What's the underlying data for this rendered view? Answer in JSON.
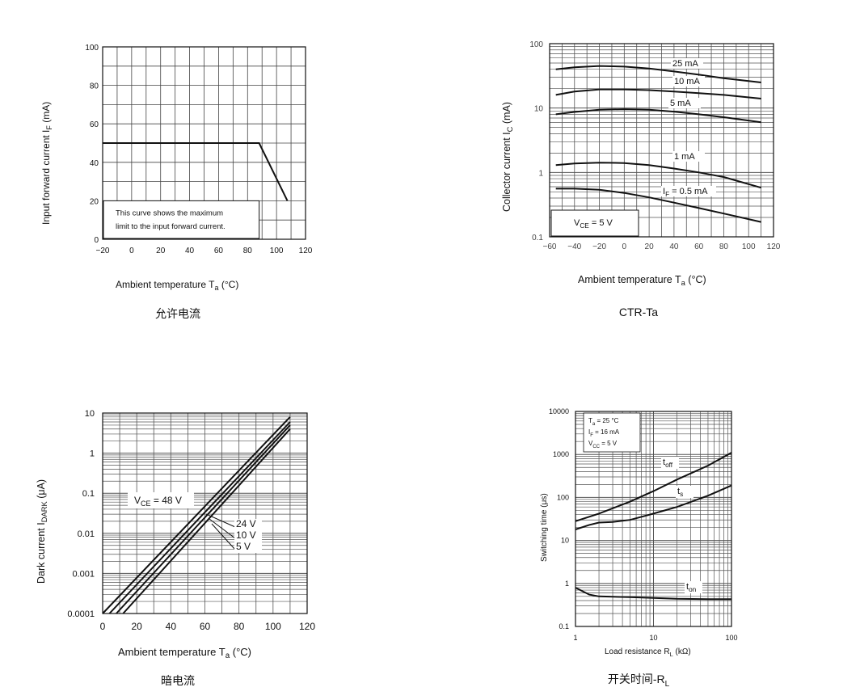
{
  "captions": {
    "c1": "允许电流",
    "c2": "CTR-Ta",
    "c3": "暗电流",
    "c4_main": "开关时间-R",
    "c4_sub": "L"
  },
  "chart_data": [
    {
      "id": "allowable-current",
      "type": "line",
      "xlabel": "Ambient temperature   T",
      "xlabel_sub": "a",
      "xlabel_unit": "   (°C)",
      "ylabel": "Input forward current   I",
      "ylabel_sub": "F",
      "ylabel_unit": "   (mA)",
      "xlim": [
        -20,
        120
      ],
      "ylim": [
        0,
        100
      ],
      "xticks": [
        -20,
        0,
        20,
        40,
        60,
        80,
        100,
        120
      ],
      "yticks": [
        0,
        20,
        40,
        60,
        80,
        100
      ],
      "series": [
        {
          "x": [
            -20,
            88,
            107.5
          ],
          "y": [
            50,
            50,
            20
          ]
        }
      ],
      "note_lines": [
        "This curve shows the maximum",
        "limit to the input forward current."
      ],
      "grid": true
    },
    {
      "id": "ctr-ta",
      "type": "line",
      "xlabel": "Ambient temperature   T",
      "xlabel_sub": "a",
      "xlabel_unit": "   (°C)",
      "ylabel": "Collector current   I",
      "ylabel_sub": "C",
      "ylabel_unit": "   (mA)",
      "xlim": [
        -60,
        120
      ],
      "ylim": [
        0.1,
        100
      ],
      "yscale": "log",
      "xticks": [
        "−60",
        "−40",
        "−20",
        "0",
        "20",
        "40",
        "60",
        "80",
        "100",
        "120"
      ],
      "yticks": [
        "0.1",
        "1",
        "10",
        "100"
      ],
      "series": [
        {
          "name": "25 mA",
          "x": [
            -55,
            -40,
            -20,
            0,
            20,
            40,
            60,
            80,
            110
          ],
          "y": [
            40,
            43,
            45,
            44,
            41,
            37,
            33,
            29,
            25
          ]
        },
        {
          "name": "10 mA",
          "x": [
            -55,
            -40,
            -20,
            0,
            20,
            40,
            60,
            80,
            110
          ],
          "y": [
            16,
            18,
            19.5,
            19.5,
            19,
            18,
            17,
            16,
            14
          ]
        },
        {
          "name": "5 mA",
          "x": [
            -55,
            -40,
            -20,
            0,
            20,
            40,
            60,
            80,
            110
          ],
          "y": [
            8,
            8.7,
            9.4,
            9.6,
            9.4,
            8.8,
            8,
            7.2,
            6
          ]
        },
        {
          "name": "1 mA",
          "x": [
            -55,
            -40,
            -20,
            0,
            20,
            40,
            60,
            80,
            110
          ],
          "y": [
            1.3,
            1.38,
            1.42,
            1.4,
            1.3,
            1.15,
            1.0,
            0.85,
            0.58
          ]
        },
        {
          "name": "I",
          "name_sub": "F",
          "name_suffix": " = 0.5 mA",
          "x": [
            -55,
            -40,
            -20,
            0,
            20,
            40,
            60,
            80,
            110
          ],
          "y": [
            0.56,
            0.56,
            0.54,
            0.48,
            0.41,
            0.34,
            0.28,
            0.23,
            0.17
          ]
        }
      ],
      "legend_box": {
        "prefix": "V",
        "sub": "CE",
        "suffix": " = 5 V"
      },
      "grid": true
    },
    {
      "id": "dark-current",
      "type": "line",
      "xlabel": "Ambient temperature   T",
      "xlabel_sub": "a",
      "xlabel_unit": "   (°C)",
      "ylabel": "Dark current   I",
      "ylabel_sub": "DARK",
      "ylabel_unit": "   (μA)",
      "xlim": [
        0,
        120
      ],
      "ylim": [
        0.0001,
        10
      ],
      "yscale": "log",
      "xticks": [
        "0",
        "20",
        "40",
        "60",
        "80",
        "100",
        "120"
      ],
      "yticks": [
        "0.0001",
        "0.001",
        "0.01",
        "0.1",
        "1",
        "10"
      ],
      "series": [
        {
          "name": "V",
          "name_sub": "CE",
          "name_suffix": " = 48 V",
          "x": [
            0,
            110
          ],
          "y": [
            0.0001,
            8
          ]
        },
        {
          "name": "24 V",
          "x": [
            4,
            110
          ],
          "y": [
            0.0001,
            6
          ]
        },
        {
          "name": "10 V",
          "x": [
            8,
            110
          ],
          "y": [
            0.0001,
            5
          ]
        },
        {
          "name": "5 V",
          "x": [
            12,
            110
          ],
          "y": [
            0.0001,
            4
          ]
        }
      ],
      "grid": true
    },
    {
      "id": "switching-time",
      "type": "line",
      "xlabel": "Load resistance   R",
      "xlabel_sub": "L",
      "xlabel_unit": "   (kΩ)",
      "ylabel": "Switching time   (μs)",
      "xlim": [
        1,
        100
      ],
      "ylim": [
        0.1,
        10000
      ],
      "xscale": "log",
      "yscale": "log",
      "xticks": [
        "1",
        "10",
        "100"
      ],
      "yticks": [
        "0.1",
        "1",
        "10",
        "100",
        "1000",
        "10000"
      ],
      "series": [
        {
          "name": "t",
          "name_sub": "off",
          "x": [
            1,
            2,
            5,
            10,
            20,
            50,
            100
          ],
          "y": [
            28,
            42,
            80,
            140,
            260,
            550,
            1100
          ]
        },
        {
          "name": "t",
          "name_sub": "s",
          "x": [
            1,
            1.5,
            2,
            3,
            5,
            10,
            20,
            50,
            100
          ],
          "y": [
            18,
            23,
            26,
            27,
            30,
            42,
            60,
            110,
            190
          ]
        },
        {
          "name": "t",
          "name_sub": "on",
          "x": [
            1,
            1.5,
            2,
            5,
            10,
            20,
            50,
            100
          ],
          "y": [
            0.8,
            0.55,
            0.5,
            0.48,
            0.46,
            0.44,
            0.43,
            0.43
          ]
        }
      ],
      "conditions": [
        {
          "prefix": "T",
          "sub": "a",
          "suffix": " = 25 °C"
        },
        {
          "prefix": "I",
          "sub": "F",
          "suffix": " = 16 mA"
        },
        {
          "prefix": "V",
          "sub": "CC",
          "suffix": " = 5 V"
        }
      ],
      "grid": true
    }
  ]
}
